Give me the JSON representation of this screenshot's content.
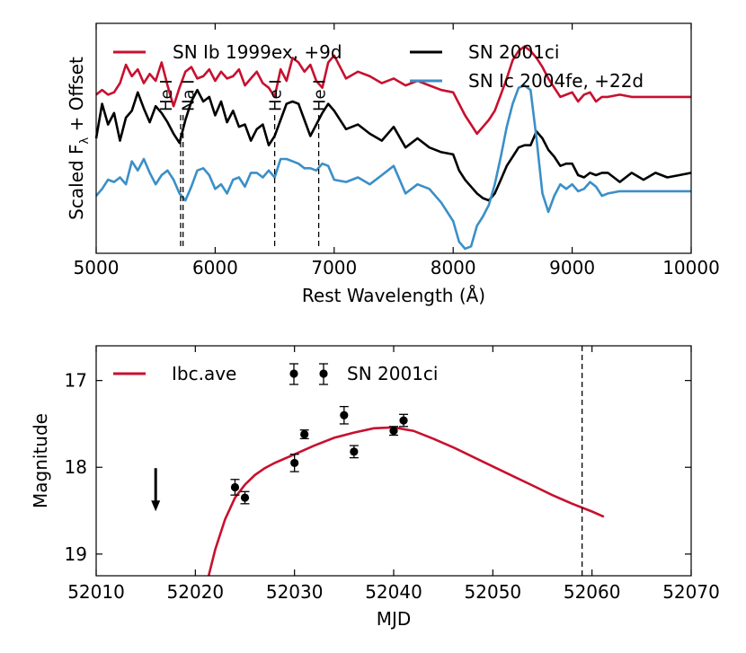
{
  "chart_data": [
    {
      "type": "line",
      "xlabel": "Rest Wavelength (Å)",
      "ylabel": "Scaled F",
      "ylabel_sub": "λ",
      "ylabel_tail": " + Offset",
      "xlim": [
        5000,
        10000
      ],
      "ylim": [
        0,
        10
      ],
      "xticks": [
        5000,
        6000,
        7000,
        8000,
        9000,
        10000
      ],
      "xtick_labels": [
        "5000",
        "6000",
        "7000",
        "8000",
        "9000",
        "10000"
      ],
      "legend_position": "top",
      "series": [
        {
          "name": "SN Ib 1999ex, +9d",
          "color": "#c8102e",
          "x": [
            5000,
            5050,
            5100,
            5150,
            5200,
            5250,
            5300,
            5350,
            5400,
            5450,
            5500,
            5550,
            5600,
            5650,
            5700,
            5750,
            5800,
            5850,
            5900,
            5950,
            6000,
            6050,
            6100,
            6150,
            6200,
            6250,
            6300,
            6350,
            6400,
            6450,
            6500,
            6550,
            6600,
            6650,
            6700,
            6750,
            6800,
            6850,
            6900,
            6950,
            7000,
            7100,
            7200,
            7300,
            7400,
            7500,
            7600,
            7700,
            7800,
            7900,
            8000,
            8050,
            8100,
            8150,
            8200,
            8250,
            8300,
            8350,
            8400,
            8450,
            8500,
            8550,
            8600,
            8650,
            8700,
            8750,
            8800,
            8850,
            8900,
            8950,
            9000,
            9050,
            9100,
            9150,
            9200,
            9250,
            9300,
            9400,
            9500,
            9600,
            9700,
            9800,
            9900,
            10000
          ],
          "y": [
            6.9,
            7.1,
            6.9,
            7.0,
            7.4,
            8.2,
            7.7,
            8.0,
            7.4,
            7.8,
            7.5,
            8.3,
            7.3,
            6.4,
            7.2,
            7.9,
            8.1,
            7.6,
            7.7,
            8.0,
            7.5,
            7.9,
            7.6,
            7.7,
            8.0,
            7.3,
            7.6,
            7.9,
            7.4,
            7.2,
            6.8,
            8.0,
            7.5,
            8.5,
            8.3,
            7.9,
            8.2,
            7.5,
            7.2,
            8.3,
            8.6,
            7.6,
            7.9,
            7.7,
            7.4,
            7.6,
            7.3,
            7.5,
            7.3,
            7.1,
            7.0,
            6.5,
            6.0,
            5.6,
            5.2,
            5.5,
            5.8,
            6.2,
            6.9,
            7.6,
            8.4,
            8.8,
            9.0,
            8.8,
            8.5,
            8.1,
            7.6,
            7.2,
            6.8,
            6.9,
            7.0,
            6.6,
            6.9,
            7.0,
            6.6,
            6.8,
            6.8,
            6.9,
            6.8,
            6.8,
            6.8,
            6.8,
            6.8,
            6.8
          ]
        },
        {
          "name": "SN 2001ci",
          "color": "#000000",
          "x": [
            5000,
            5050,
            5100,
            5150,
            5200,
            5250,
            5300,
            5350,
            5400,
            5450,
            5500,
            5550,
            5600,
            5650,
            5700,
            5750,
            5800,
            5850,
            5900,
            5950,
            6000,
            6050,
            6100,
            6150,
            6200,
            6250,
            6300,
            6350,
            6400,
            6450,
            6500,
            6550,
            6600,
            6650,
            6700,
            6750,
            6800,
            6850,
            6900,
            6950,
            7000,
            7100,
            7200,
            7300,
            7400,
            7500,
            7600,
            7700,
            7800,
            7900,
            8000,
            8050,
            8100,
            8150,
            8200,
            8250,
            8300,
            8350,
            8400,
            8450,
            8500,
            8550,
            8600,
            8650,
            8700,
            8750,
            8800,
            8850,
            8900,
            8950,
            9000,
            9050,
            9100,
            9150,
            9200,
            9250,
            9300,
            9400,
            9500,
            9600,
            9700,
            9800,
            9900,
            10000
          ],
          "y": [
            5.0,
            6.5,
            5.6,
            6.1,
            4.9,
            5.9,
            6.2,
            7.0,
            6.3,
            5.7,
            6.4,
            6.1,
            5.7,
            5.2,
            4.8,
            5.8,
            6.6,
            7.1,
            6.6,
            6.8,
            6.0,
            6.6,
            5.7,
            6.2,
            5.5,
            5.6,
            4.9,
            5.4,
            5.6,
            4.7,
            5.1,
            5.8,
            6.5,
            6.6,
            6.5,
            5.8,
            5.1,
            5.6,
            6.1,
            6.5,
            6.2,
            5.4,
            5.6,
            5.2,
            4.9,
            5.5,
            4.6,
            5.0,
            4.6,
            4.4,
            4.3,
            3.6,
            3.2,
            2.9,
            2.6,
            2.4,
            2.3,
            2.6,
            3.2,
            3.8,
            4.2,
            4.6,
            4.7,
            4.7,
            5.3,
            5.0,
            4.5,
            4.2,
            3.8,
            3.9,
            3.9,
            3.4,
            3.3,
            3.5,
            3.4,
            3.5,
            3.5,
            3.1,
            3.5,
            3.2,
            3.5,
            3.3,
            3.4,
            3.5
          ]
        },
        {
          "name": "SN Ic 2004fe, +22d",
          "color": "#3a8fc7",
          "x": [
            5000,
            5050,
            5100,
            5150,
            5200,
            5250,
            5300,
            5350,
            5400,
            5450,
            5500,
            5550,
            5600,
            5650,
            5700,
            5750,
            5800,
            5850,
            5900,
            5950,
            6000,
            6050,
            6100,
            6150,
            6200,
            6250,
            6300,
            6350,
            6400,
            6450,
            6500,
            6550,
            6600,
            6650,
            6700,
            6750,
            6800,
            6850,
            6900,
            6950,
            7000,
            7100,
            7200,
            7300,
            7400,
            7500,
            7600,
            7700,
            7800,
            7900,
            8000,
            8050,
            8100,
            8150,
            8200,
            8250,
            8300,
            8350,
            8400,
            8450,
            8500,
            8550,
            8600,
            8650,
            8700,
            8750,
            8800,
            8850,
            8900,
            8950,
            9000,
            9050,
            9100,
            9150,
            9200,
            9250,
            9300,
            9400,
            9500,
            9600,
            9700,
            9800,
            9900,
            10000
          ],
          "y": [
            2.5,
            2.8,
            3.2,
            3.1,
            3.3,
            3.0,
            4.0,
            3.6,
            4.1,
            3.5,
            3.0,
            3.4,
            3.6,
            3.2,
            2.6,
            2.3,
            2.9,
            3.6,
            3.7,
            3.4,
            2.8,
            3.0,
            2.6,
            3.2,
            3.3,
            2.9,
            3.5,
            3.5,
            3.3,
            3.6,
            3.3,
            4.1,
            4.1,
            4.0,
            3.9,
            3.7,
            3.7,
            3.6,
            3.9,
            3.8,
            3.2,
            3.1,
            3.3,
            3.0,
            3.4,
            3.8,
            2.6,
            3.0,
            2.8,
            2.2,
            1.4,
            0.5,
            0.2,
            0.3,
            1.2,
            1.6,
            2.1,
            3.0,
            4.2,
            5.5,
            6.5,
            7.2,
            7.3,
            7.1,
            5.0,
            2.6,
            1.8,
            2.5,
            3.0,
            2.8,
            3.0,
            2.7,
            2.8,
            3.1,
            2.9,
            2.5,
            2.6,
            2.7,
            2.7,
            2.7,
            2.7,
            2.7,
            2.7,
            2.7
          ]
        }
      ],
      "annotations": [
        {
          "label": "He I",
          "x": 5710
        },
        {
          "label": "Na I",
          "x": 5730
        },
        {
          "label": "He I",
          "x": 6500
        },
        {
          "label": "He I",
          "x": 6870
        }
      ]
    },
    {
      "type": "line",
      "xlabel": "MJD",
      "ylabel": "Magnitude",
      "xlim": [
        52010,
        52070
      ],
      "ylim": [
        19.25,
        16.6
      ],
      "xticks": [
        52010,
        52020,
        52030,
        52040,
        52050,
        52060,
        52070
      ],
      "xtick_labels": [
        "52010",
        "52020",
        "52030",
        "52040",
        "52050",
        "52060",
        "52070"
      ],
      "yticks": [
        17,
        18,
        19
      ],
      "ytick_labels": [
        "17",
        "18",
        "19"
      ],
      "legend_position": "top",
      "series": [
        {
          "name": "Ibc.ave",
          "color": "#c8102e",
          "x": [
            52021.3,
            52022,
            52023,
            52024,
            52025,
            52026,
            52027,
            52028,
            52030,
            52032,
            52034,
            52036,
            52038,
            52040,
            52042,
            52044,
            52046,
            52048,
            52050,
            52052,
            52054,
            52056,
            52058,
            52060,
            52061.2
          ],
          "y": [
            19.27,
            18.95,
            18.6,
            18.35,
            18.2,
            18.09,
            18.01,
            17.95,
            17.85,
            17.75,
            17.66,
            17.6,
            17.55,
            17.54,
            17.58,
            17.67,
            17.77,
            17.88,
            17.99,
            18.1,
            18.21,
            18.32,
            18.42,
            18.51,
            18.57
          ]
        },
        {
          "name": "SN 2001ci",
          "color": "#000000",
          "x": [
            52024,
            52025,
            52030,
            52031,
            52035,
            52036,
            52040,
            52041
          ],
          "y": [
            18.23,
            18.35,
            17.95,
            17.62,
            17.4,
            17.82,
            17.58,
            17.46
          ],
          "yerr": [
            0.09,
            0.07,
            0.1,
            0.05,
            0.1,
            0.07,
            0.05,
            0.07
          ]
        }
      ],
      "upper_limit": {
        "x": 52016,
        "y": 18.3
      },
      "vline": {
        "x": 52059
      }
    }
  ]
}
